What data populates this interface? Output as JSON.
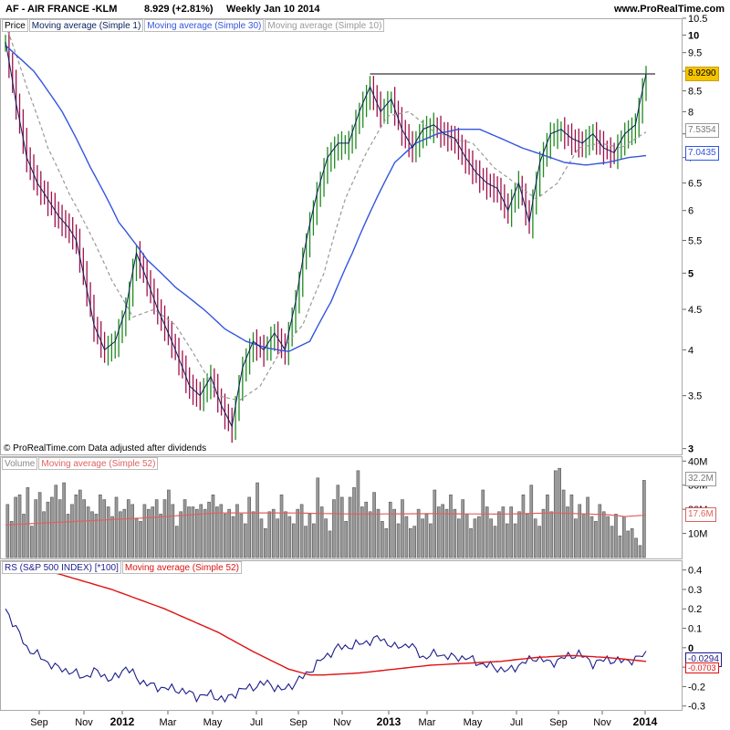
{
  "header": {
    "symbol_title": "AF - AIR FRANCE -KLM",
    "price_change": "8.929 (+2.81%)",
    "period_date": "Weekly  Jan 10 2014",
    "site": "www.ProRealTime.com"
  },
  "legends": {
    "price_panel": [
      "Price",
      "Moving average (Simple 1)",
      "Moving average (Simple 30)",
      "Moving average (Simple 10)"
    ],
    "volume_panel": [
      "Volume",
      "Moving average (Simple 52)"
    ],
    "rs_panel": [
      "RS (S&P 500 INDEX) [*100]",
      "Moving average (Simple 52)"
    ]
  },
  "badges": {
    "last_price": "8.9290",
    "ma10": "7.5354",
    "ma30": "7.0435",
    "volume": "32.2M",
    "volume_ma": "17.6M",
    "rs": "-0.0294",
    "rs_ma": "-0.0703"
  },
  "copyright": "© ProRealTime.com  Data adjusted after dividends",
  "colors": {
    "up_bar": "#1f8a1f",
    "down_bar": "#a0104a",
    "ma1": "#0a1f5c",
    "ma30": "#3355dd",
    "ma10": "#999999",
    "volume_bar": "#888888",
    "volume_ma": "#e06060",
    "rs_line": "#1c1c8c",
    "rs_ma": "#dd1111",
    "badge_last": "#f5c400"
  },
  "chart_data": [
    {
      "type": "line",
      "title": "AF - AIR FRANCE -KLM",
      "scale": "log",
      "y_ticks": [
        3,
        3.5,
        4,
        4.5,
        5,
        5.5,
        6,
        6.5,
        7,
        7.5,
        8,
        8.5,
        9,
        9.5,
        10,
        10.5
      ],
      "y_tick_labels": [
        "3",
        "3.5",
        "4",
        "4.5",
        "5",
        "5.5",
        "6",
        "6.5",
        "7",
        "7.5",
        "8",
        "8.5",
        "9",
        "9.5",
        "10",
        "10.5"
      ],
      "ylim": [
        2.95,
        10.5
      ],
      "x_labels": [
        "Sep",
        "Nov",
        "2012",
        "Mar",
        "May",
        "Jul",
        "Sep",
        "Nov",
        "2013",
        "Mar",
        "May",
        "Jul",
        "Sep",
        "Nov",
        "2014"
      ],
      "resistance_level": 8.93,
      "series": [
        {
          "name": "Moving average (Simple 1)",
          "x": [
            0,
            3,
            6,
            9,
            12,
            15,
            18,
            20,
            22,
            25,
            28,
            31,
            34,
            37,
            40,
            43,
            46,
            49,
            52,
            55,
            58,
            61,
            64,
            67,
            70,
            73,
            76,
            79,
            82,
            85,
            88,
            91,
            94,
            97,
            100,
            103,
            106,
            109,
            112,
            115,
            118,
            121,
            124,
            127,
            130,
            133,
            136,
            139,
            142,
            145,
            148,
            151,
            154,
            157,
            160,
            163,
            166,
            169,
            172,
            175,
            178,
            181
          ],
          "values": [
            9.8,
            8.2,
            7.0,
            6.5,
            6.2,
            5.9,
            5.7,
            5.5,
            5.0,
            4.3,
            4.0,
            4.1,
            4.5,
            5.3,
            4.9,
            4.5,
            4.2,
            3.9,
            3.6,
            3.5,
            3.7,
            3.4,
            3.2,
            3.8,
            4.1,
            4.0,
            4.2,
            4.0,
            4.6,
            5.5,
            6.3,
            7.0,
            7.3,
            7.3,
            8.0,
            8.6,
            8.0,
            8.3,
            7.6,
            7.2,
            7.6,
            7.7,
            7.5,
            7.4,
            7.0,
            6.7,
            6.5,
            6.4,
            6.0,
            6.5,
            5.8,
            6.9,
            7.5,
            7.6,
            7.4,
            7.3,
            7.5,
            7.2,
            7.1,
            7.5,
            7.7,
            8.93
          ]
        },
        {
          "name": "Moving average (Simple 30)",
          "x": [
            0,
            8,
            16,
            24,
            32,
            40,
            48,
            56,
            62,
            68,
            74,
            80,
            86,
            92,
            98,
            104,
            110,
            116,
            122,
            128,
            134,
            140,
            146,
            152,
            158,
            164,
            170,
            176,
            181
          ],
          "values": [
            9.7,
            9.0,
            8.0,
            6.8,
            5.8,
            5.2,
            4.8,
            4.5,
            4.25,
            4.1,
            4.02,
            3.98,
            4.1,
            4.6,
            5.3,
            6.1,
            6.9,
            7.3,
            7.5,
            7.6,
            7.6,
            7.4,
            7.2,
            7.05,
            6.9,
            6.85,
            6.9,
            7.0,
            7.04
          ]
        },
        {
          "name": "Moving average (Simple 10)",
          "x": [
            0,
            6,
            12,
            18,
            24,
            30,
            36,
            42,
            48,
            54,
            60,
            66,
            72,
            78,
            84,
            90,
            96,
            102,
            108,
            114,
            120,
            126,
            132,
            138,
            144,
            150,
            156,
            162,
            168,
            174,
            181
          ],
          "values": [
            10.3,
            8.6,
            7.2,
            6.3,
            5.6,
            4.9,
            4.4,
            4.5,
            4.3,
            3.9,
            3.5,
            3.45,
            3.6,
            4.0,
            4.3,
            5.0,
            6.2,
            7.1,
            7.9,
            8.0,
            7.6,
            7.4,
            7.3,
            6.8,
            6.5,
            6.2,
            6.5,
            7.2,
            7.3,
            7.2,
            7.54
          ]
        }
      ]
    },
    {
      "type": "bar",
      "title": "Volume",
      "y_ticks": [
        10,
        20,
        30,
        40
      ],
      "y_tick_labels": [
        "10M",
        "20M",
        "30M",
        "40M"
      ],
      "ylim": [
        0,
        42
      ],
      "values": [
        22,
        15,
        25,
        26,
        18,
        29,
        13,
        24,
        27,
        19,
        23,
        25,
        30,
        24,
        31,
        18,
        22,
        26,
        28,
        24,
        21,
        19,
        18,
        26,
        24,
        21,
        17,
        25,
        19,
        20,
        24,
        22,
        16,
        15,
        22,
        20,
        21,
        24,
        18,
        24,
        28,
        22,
        13,
        19,
        24,
        21,
        21,
        20,
        22,
        20,
        23,
        26,
        21,
        22,
        18,
        20,
        17,
        22,
        18,
        14,
        25,
        19,
        31,
        16,
        12,
        19,
        20,
        16,
        26,
        19,
        17,
        14,
        20,
        22,
        13,
        18,
        14,
        33,
        21,
        16,
        11,
        24,
        30,
        25,
        15,
        25,
        29,
        36,
        21,
        23,
        19,
        27,
        20,
        15,
        12,
        23,
        20,
        14,
        24,
        17,
        12,
        13,
        20,
        16,
        18,
        14,
        28,
        21,
        22,
        20,
        26,
        20,
        16,
        24,
        18,
        12,
        16,
        17,
        28,
        21,
        16,
        13,
        19,
        21,
        14,
        21,
        14,
        19,
        26,
        18,
        30,
        16,
        13,
        20,
        26,
        19,
        36,
        37,
        28,
        21,
        26,
        16,
        22,
        18,
        25,
        17,
        15,
        22,
        19,
        17,
        13,
        18,
        9,
        17,
        11,
        12,
        8,
        5,
        32
      ],
      "series": [
        {
          "name": "Moving average (Simple 52)",
          "x": [
            0,
            20,
            40,
            60,
            80,
            100,
            120,
            140,
            155,
            170,
            175,
            181
          ],
          "values": [
            13.5,
            15,
            16.5,
            18.5,
            18.5,
            18,
            18.2,
            18,
            18.5,
            17.8,
            17,
            17.6
          ]
        }
      ]
    },
    {
      "type": "line",
      "title": "RS (S&P 500 INDEX) [*100]",
      "y_ticks": [
        -0.3,
        -0.2,
        -0.1,
        0,
        0.1,
        0.2,
        0.3,
        0.4
      ],
      "y_tick_labels": [
        "-0.3",
        "-0.2",
        "-0.1",
        "0",
        "0.1",
        "0.2",
        "0.3",
        "0.4"
      ],
      "ylim": [
        -0.32,
        0.45
      ],
      "series": [
        {
          "name": "RS (S&P 500 INDEX) [*100]",
          "x": [
            0,
            3,
            6,
            10,
            14,
            18,
            22,
            26,
            30,
            34,
            38,
            42,
            46,
            50,
            54,
            58,
            62,
            66,
            70,
            74,
            78,
            82,
            86,
            90,
            94,
            98,
            102,
            106,
            110,
            114,
            118,
            122,
            126,
            130,
            134,
            138,
            142,
            146,
            150,
            154,
            158,
            162,
            166,
            170,
            174,
            178,
            181
          ],
          "values": [
            0.2,
            0.1,
            0.0,
            -0.05,
            -0.1,
            -0.12,
            -0.15,
            -0.12,
            -0.17,
            -0.1,
            -0.17,
            -0.2,
            -0.21,
            -0.22,
            -0.25,
            -0.24,
            -0.27,
            -0.22,
            -0.2,
            -0.18,
            -0.22,
            -0.18,
            -0.12,
            -0.05,
            0.0,
            0.01,
            0.03,
            0.05,
            0.0,
            0.02,
            -0.05,
            -0.03,
            -0.05,
            -0.05,
            -0.08,
            -0.1,
            -0.12,
            -0.08,
            -0.05,
            -0.08,
            -0.05,
            -0.03,
            -0.08,
            -0.06,
            -0.07,
            -0.06,
            -0.03
          ]
        },
        {
          "name": "Moving average (Simple 52)",
          "x": [
            0,
            15,
            30,
            45,
            60,
            70,
            80,
            86,
            90,
            100,
            110,
            120,
            130,
            140,
            150,
            160,
            170,
            181
          ],
          "values": [
            0.44,
            0.38,
            0.3,
            0.2,
            0.08,
            -0.02,
            -0.11,
            -0.14,
            -0.14,
            -0.13,
            -0.11,
            -0.09,
            -0.08,
            -0.07,
            -0.05,
            -0.04,
            -0.05,
            -0.07
          ]
        }
      ]
    }
  ]
}
